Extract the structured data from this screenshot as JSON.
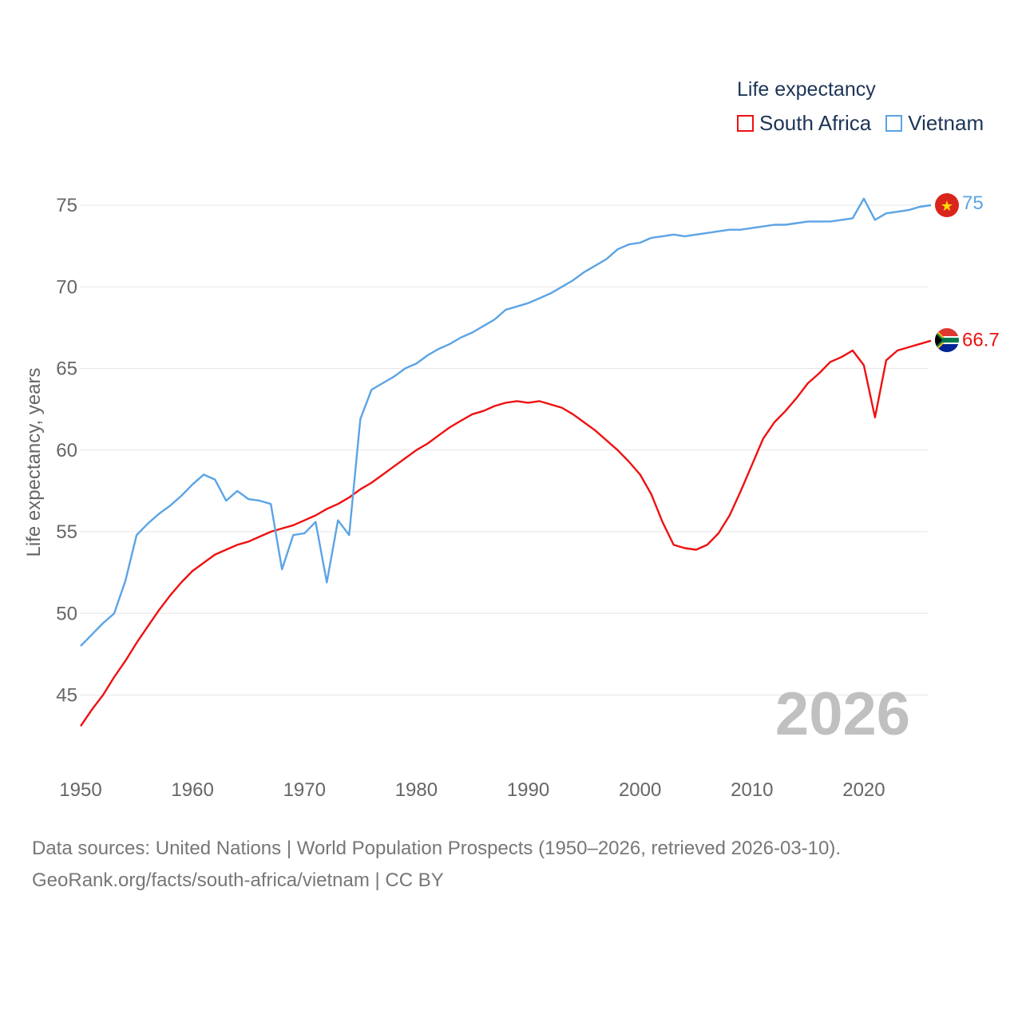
{
  "legend": {
    "title": "Life expectancy",
    "items": [
      {
        "name": "South Africa",
        "color": "#ee1111"
      },
      {
        "name": "Vietnam",
        "color": "#5ba4e5"
      }
    ]
  },
  "footer": {
    "sources": "Data sources: United Nations | World Population Prospects (1950–2026, retrieved 2026-03-10).",
    "link": "GeoRank.org/facts/south-africa/vietnam | CC BY"
  },
  "chart_data": {
    "type": "line",
    "title": "Life expectancy",
    "xlabel": "",
    "ylabel": "Life expectancy, years",
    "year_label": "2026",
    "xlim": [
      1950,
      2026
    ],
    "ylim": [
      41.5,
      77
    ],
    "x_ticks": [
      1950,
      1960,
      1970,
      1980,
      1990,
      2000,
      2010,
      2020
    ],
    "y_ticks": [
      45,
      50,
      55,
      60,
      65,
      70,
      75
    ],
    "grid": true,
    "legend_position": "top-right",
    "end_labels": [
      "66.7",
      "75"
    ],
    "x": [
      1950,
      1951,
      1952,
      1953,
      1954,
      1955,
      1956,
      1957,
      1958,
      1959,
      1960,
      1961,
      1962,
      1963,
      1964,
      1965,
      1966,
      1967,
      1968,
      1969,
      1970,
      1971,
      1972,
      1973,
      1974,
      1975,
      1976,
      1977,
      1978,
      1979,
      1980,
      1981,
      1982,
      1983,
      1984,
      1985,
      1986,
      1987,
      1988,
      1989,
      1990,
      1991,
      1992,
      1993,
      1994,
      1995,
      1996,
      1997,
      1998,
      1999,
      2000,
      2001,
      2002,
      2003,
      2004,
      2005,
      2006,
      2007,
      2008,
      2009,
      2010,
      2011,
      2012,
      2013,
      2014,
      2015,
      2016,
      2017,
      2018,
      2019,
      2020,
      2021,
      2022,
      2023,
      2024,
      2025,
      2026
    ],
    "series": [
      {
        "name": "South Africa",
        "color": "#ee1111",
        "values": [
          43.1,
          44.1,
          45.0,
          46.1,
          47.1,
          48.2,
          49.2,
          50.2,
          51.1,
          51.9,
          52.6,
          53.1,
          53.6,
          53.9,
          54.2,
          54.4,
          54.7,
          55.0,
          55.2,
          55.4,
          55.7,
          56.0,
          56.4,
          56.7,
          57.1,
          57.6,
          58.0,
          58.5,
          59.0,
          59.5,
          60.0,
          60.4,
          60.9,
          61.4,
          61.8,
          62.2,
          62.4,
          62.7,
          62.9,
          63.0,
          62.9,
          63.0,
          62.8,
          62.6,
          62.2,
          61.7,
          61.2,
          60.6,
          60.0,
          59.3,
          58.5,
          57.3,
          55.6,
          54.2,
          54.0,
          53.9,
          54.2,
          54.9,
          56.0,
          57.5,
          59.1,
          60.7,
          61.7,
          62.4,
          63.2,
          64.1,
          64.7,
          65.4,
          65.7,
          66.1,
          65.2,
          62.0,
          65.5,
          66.1,
          66.3,
          66.5,
          66.7
        ]
      },
      {
        "name": "Vietnam",
        "color": "#5ba4e5",
        "values": [
          48.0,
          48.7,
          49.4,
          50.0,
          52.0,
          54.8,
          55.5,
          56.1,
          56.6,
          57.2,
          57.9,
          58.5,
          58.2,
          56.9,
          57.5,
          57.0,
          56.9,
          56.7,
          52.7,
          54.8,
          54.9,
          55.6,
          51.9,
          55.7,
          54.8,
          61.9,
          63.7,
          64.1,
          64.5,
          65.0,
          65.3,
          65.8,
          66.2,
          66.5,
          66.9,
          67.2,
          67.6,
          68.0,
          68.6,
          68.8,
          69.0,
          69.3,
          69.6,
          70.0,
          70.4,
          70.9,
          71.3,
          71.7,
          72.3,
          72.6,
          72.7,
          73.0,
          73.1,
          73.2,
          73.1,
          73.2,
          73.3,
          73.4,
          73.5,
          73.5,
          73.6,
          73.7,
          73.8,
          73.8,
          73.9,
          74.0,
          74.0,
          74.0,
          74.1,
          74.2,
          75.4,
          74.1,
          74.5,
          74.6,
          74.7,
          74.9,
          75.0
        ]
      }
    ]
  }
}
